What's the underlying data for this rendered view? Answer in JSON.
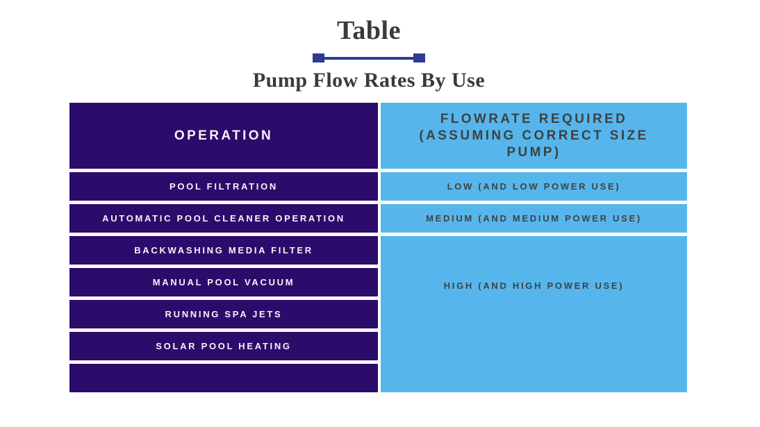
{
  "chart_data": {
    "type": "table",
    "title": "Table",
    "subtitle": "Pump Flow Rates By Use",
    "columns": [
      "OPERATION",
      "FLOWRATE REQUIRED (ASSUMING CORRECT SIZE PUMP)"
    ],
    "rows": [
      [
        "POOL FILTRATION",
        "LOW (AND LOW POWER USE)"
      ],
      [
        "AUTOMATIC POOL CLEANER OPERATION",
        "MEDIUM (AND MEDIUM POWER USE)"
      ],
      [
        "BACKWASHING MEDIA FILTER",
        "HIGH (AND HIGH POWER USE)"
      ],
      [
        "MANUAL POOL VACUUM",
        "HIGH (AND HIGH POWER USE)"
      ],
      [
        "RUNNING SPA JETS",
        "HIGH (AND HIGH POWER USE)"
      ],
      [
        "SOLAR POOL HEATING",
        "HIGH (AND HIGH POWER USE)"
      ],
      [
        "",
        ""
      ]
    ],
    "layout_hints": {
      "merged_flowrate_cell": "rows 3-7 of the flowrate column are one merged cell labeled HIGH (AND HIGH POWER USE)",
      "last_row_empty": true
    }
  },
  "header": {
    "title": "Table",
    "subtitle": "Pump Flow Rates By Use"
  },
  "table": {
    "operation_header": "OPERATION",
    "flowrate_header": "FLOWRATE REQUIRED\n(ASSUMING CORRECT SIZE\nPUMP)",
    "operations": [
      "POOL FILTRATION",
      "AUTOMATIC POOL CLEANER OPERATION",
      "BACKWASHING MEDIA FILTER",
      "MANUAL POOL VACUUM",
      "RUNNING SPA JETS",
      "SOLAR POOL HEATING",
      ""
    ],
    "flowrates": [
      "LOW (AND LOW POWER USE)",
      "MEDIUM (AND MEDIUM POWER USE)"
    ],
    "merged_flowrate": "HIGH (AND HIGH POWER USE)"
  },
  "colors": {
    "operation-bg": "#2c0c6a",
    "flowrate-bg": "#56b6ec",
    "operation-text": "#f6f3fb",
    "flowrate-text": "#3f4142",
    "title-text": "#3a3a3a",
    "divider": "#2c3b94",
    "page-bg": "#ffffff"
  }
}
